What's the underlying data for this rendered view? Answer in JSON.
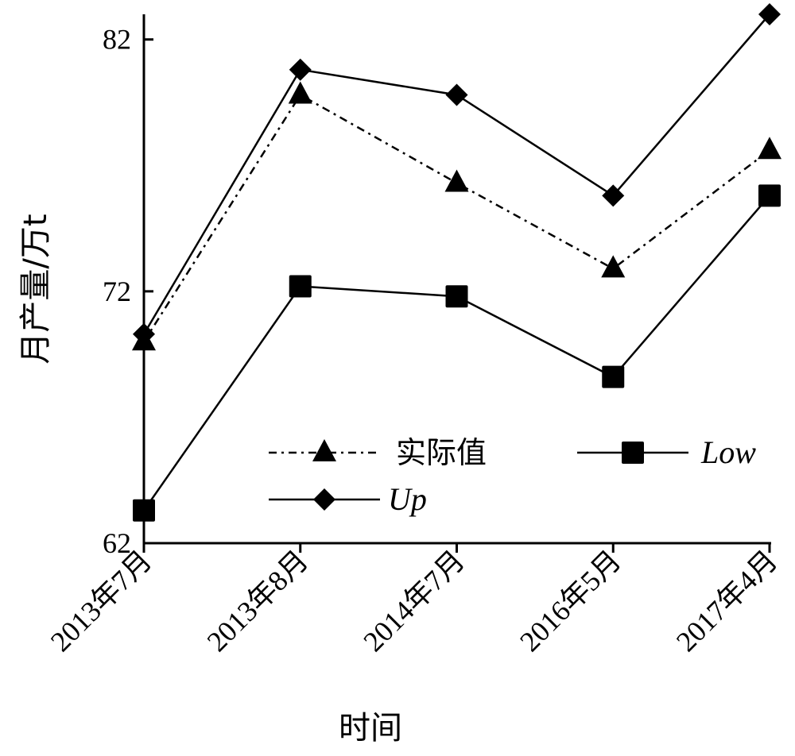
{
  "chart_data": {
    "type": "line",
    "xlabel": "时间",
    "ylabel": "月产量/万t",
    "categories": [
      "2013年7月",
      "2013年8月",
      "2014年7月",
      "2016年5月",
      "2017年4月"
    ],
    "ylim": [
      62,
      83
    ],
    "yticks": [
      62,
      72,
      82
    ],
    "grid": false,
    "legend_position": "lower-right",
    "series": [
      {
        "name": "实际值",
        "marker": "triangle",
        "line_style": "dash-dot",
        "values": [
          70.0,
          79.8,
          76.3,
          72.9,
          77.6
        ]
      },
      {
        "name": "Low",
        "marker": "square",
        "line_style": "solid",
        "values": [
          63.3,
          72.2,
          71.8,
          68.6,
          75.8
        ]
      },
      {
        "name": "Up",
        "marker": "diamond",
        "line_style": "solid",
        "values": [
          70.3,
          80.8,
          79.8,
          75.8,
          83.0
        ]
      }
    ]
  }
}
